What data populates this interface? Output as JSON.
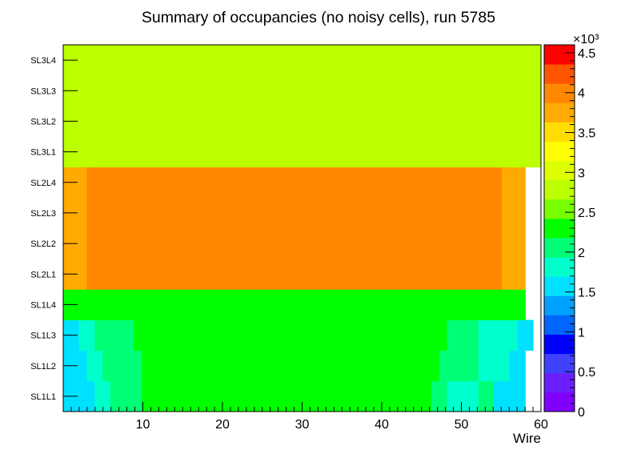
{
  "chart_data": {
    "type": "heatmap",
    "title": "Summary of occupancies (no noisy cells), run 5785",
    "xlabel": "Wire",
    "ylabel": "",
    "x_range": [
      0,
      60
    ],
    "x_ticks": [
      10,
      20,
      30,
      40,
      50,
      60
    ],
    "y_categories": [
      "SL1L1",
      "SL1L2",
      "SL1L3",
      "SL1L4",
      "SL2L1",
      "SL2L2",
      "SL2L3",
      "SL2L4",
      "SL3L1",
      "SL3L2",
      "SL3L3",
      "SL3L4"
    ],
    "z_range": [
      0,
      4.6
    ],
    "z_multiplier": "×10³",
    "colorbar_ticks": [
      "0",
      "0.5",
      "1",
      "1.5",
      "2",
      "2.5",
      "3",
      "3.5",
      "4",
      "4.5"
    ],
    "values": [
      "6666778888999999999999999999999999999999999999988777788666600",
      "66677888889999999999999999999999999999999999999988888777766000",
      "6677888889999999999999999999999999999999999999999888877777660",
      "9999999999999999999999999999999999999999999999999999999999900",
      "FFFGGGGGGGGGGGGGGGGGGGGGGGGGGGGGGGGGGGGGGGGGGGGGGGGGGGGGFFF00",
      "FFFGGGGGGGGGGGGGGGGGGGGGGGGGGGGGGGGGGGGGGGGGGGGGGGGGGGGGFFF00",
      "FFFGGGGGGGGGGGGGGGGGGGGGGGGGGGGGGGGGGGGGGGGGGGGGGGGGGGGGFFF00",
      "FFFGGGGGGGGGGGGGGGGGGGGGGGGGGGGGGGGGGGGGGGGGGGGGGGGGGGGGFFF00",
      "BBBBBBBBBBBBBBBBBBBBBBBBBBBBBBBBBBBBBBBBBBBBBBBBBBBBBBBBBBBBB",
      "BBBBBBBBBBBBBBBBBBBBBBBBBBBBBBBBBBBBBBBBBBBBBBBBBBBBBBBBBBBBB",
      "BBBBBBBBBBBBBBBBBBBBBBBBBBBBBBBBBBBBBBBBBBBBBBBBBBBBBBBBBBBBB",
      "BBBBBBBBBBBBBBBBBBBBBBBBBBBBBBBBBBBBBBBBBBBBBBBBBBBBBBBBBBBBB"
    ]
  }
}
